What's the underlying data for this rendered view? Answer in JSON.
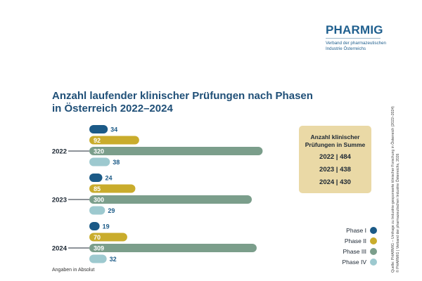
{
  "logo": {
    "name": "PHARMIG",
    "subtitle_line1": "Verband der pharmazeutischen",
    "subtitle_line2": "Industrie Österreichs"
  },
  "title_line1": "Anzahl laufender klinischer Prüfungen nach Phasen",
  "title_line2": "in Österreich 2022–2024",
  "summary": {
    "title_line1": "Anzahl klinischer",
    "title_line2": "Prüfungen in Summe",
    "lines": [
      "2022 | 484",
      "2023 | 438",
      "2024 | 430"
    ]
  },
  "legend": [
    "Phase I",
    "Phase II",
    "Phase III",
    "Phase IV"
  ],
  "footnote": "Angaben in Absolut",
  "source_line1": "Quelle: PHARMIG – Umfrage zu Industrie-gesponserte klinischer Forschung in Österreich (2022–2024)",
  "source_line2": "© PHARMIG | Verband der pharmazeutischen Industrie Österreichs, 2026",
  "colors": {
    "phase_1": "#1b5a87",
    "phase_2": "#c9ac2c",
    "phase_3": "#7b9e8b",
    "phase_4": "#9dc9cf",
    "title": "#1f4f77",
    "summary_bg": "#ead9a6"
  },
  "chart_data": {
    "type": "bar",
    "orientation": "horizontal",
    "categories": [
      "2022",
      "2023",
      "2024"
    ],
    "series": [
      {
        "name": "Phase I",
        "values": [
          34,
          24,
          19
        ]
      },
      {
        "name": "Phase II",
        "values": [
          92,
          85,
          70
        ]
      },
      {
        "name": "Phase III",
        "values": [
          320,
          300,
          309
        ]
      },
      {
        "name": "Phase IV",
        "values": [
          38,
          29,
          32
        ]
      }
    ],
    "legend_position": "bottom-right",
    "grid": false,
    "unit_note": "Angaben in Absolut"
  }
}
